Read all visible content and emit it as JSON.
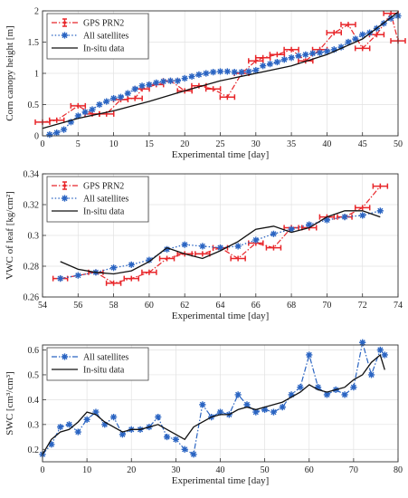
{
  "chart_data": [
    {
      "type": "line",
      "xlabel": "Experimental time [day]",
      "ylabel": "Corn canopy height [m]",
      "xlim": [
        0,
        50
      ],
      "ylim": [
        0,
        2
      ],
      "xticks": [
        0,
        5,
        10,
        15,
        20,
        25,
        30,
        35,
        40,
        45,
        50
      ],
      "yticks": [
        0,
        0.5,
        1,
        1.5,
        2
      ],
      "legend": "top-left",
      "grid": true,
      "series": [
        {
          "name": "GPS PRN2",
          "style": "dash-dot-errorbar",
          "color": "#e8262a",
          "x": [
            0,
            2,
            5,
            7,
            9,
            11,
            13,
            14,
            16,
            18,
            20,
            22,
            24,
            26,
            28,
            30,
            31,
            33,
            35,
            37,
            39,
            41,
            43,
            45,
            47,
            49,
            50
          ],
          "y": [
            0.22,
            0.25,
            0.48,
            0.35,
            0.35,
            0.58,
            0.6,
            0.75,
            0.82,
            0.88,
            0.72,
            0.8,
            0.75,
            0.62,
            1.0,
            1.2,
            1.25,
            1.3,
            1.38,
            1.2,
            1.38,
            1.65,
            1.78,
            1.4,
            1.62,
            1.96,
            1.52
          ]
        },
        {
          "name": "All satellites",
          "style": "dotted-asterisk",
          "color": "#2a64c2",
          "x": [
            1,
            2,
            3,
            4,
            5,
            6,
            7,
            8,
            9,
            10,
            11,
            12,
            13,
            14,
            15,
            16,
            17,
            18,
            19,
            20,
            21,
            22,
            23,
            24,
            25,
            26,
            27,
            28,
            29,
            30,
            31,
            32,
            33,
            34,
            35,
            36,
            37,
            38,
            39,
            40,
            41,
            42,
            43,
            44,
            45,
            46,
            47,
            48,
            49,
            50
          ],
          "y": [
            0.02,
            0.05,
            0.1,
            0.22,
            0.32,
            0.38,
            0.42,
            0.5,
            0.55,
            0.6,
            0.62,
            0.68,
            0.75,
            0.8,
            0.82,
            0.85,
            0.87,
            0.88,
            0.88,
            0.92,
            0.95,
            0.98,
            1.0,
            1.02,
            1.03,
            1.03,
            1.02,
            1.02,
            1.03,
            1.05,
            1.12,
            1.15,
            1.18,
            1.22,
            1.25,
            1.28,
            1.3,
            1.32,
            1.33,
            1.35,
            1.38,
            1.42,
            1.5,
            1.55,
            1.62,
            1.65,
            1.72,
            1.8,
            1.88,
            1.92
          ]
        },
        {
          "name": "In-situ data",
          "style": "solid",
          "color": "#111111",
          "x": [
            0,
            5,
            10,
            15,
            20,
            25,
            30,
            35,
            40,
            45,
            50
          ],
          "y": [
            0.12,
            0.28,
            0.4,
            0.55,
            0.72,
            0.88,
            1.0,
            1.12,
            1.3,
            1.55,
            1.98
          ]
        }
      ]
    },
    {
      "type": "line",
      "xlabel": "Experimental time [day]",
      "ylabel": "VWC of leaf [kg/cm²]",
      "xlim": [
        54,
        74
      ],
      "ylim": [
        0.26,
        0.34
      ],
      "xticks": [
        54,
        56,
        58,
        60,
        62,
        64,
        66,
        68,
        70,
        72,
        74
      ],
      "yticks": [
        0.26,
        0.28,
        0.3,
        0.32,
        0.34
      ],
      "legend": "top-left",
      "grid": true,
      "series": [
        {
          "name": "GPS PRN2",
          "style": "dash-dot-errorbar",
          "color": "#e8262a",
          "x": [
            55,
            57,
            58,
            59,
            60,
            61,
            62,
            63,
            64,
            65,
            66,
            67,
            68,
            69,
            70,
            71,
            72,
            73
          ],
          "y": [
            0.272,
            0.276,
            0.269,
            0.272,
            0.276,
            0.285,
            0.288,
            0.288,
            0.292,
            0.285,
            0.295,
            0.292,
            0.305,
            0.305,
            0.312,
            0.312,
            0.318,
            0.332
          ]
        },
        {
          "name": "All satellites",
          "style": "dotted-asterisk",
          "color": "#2a64c2",
          "x": [
            55,
            56,
            57,
            58,
            59,
            60,
            61,
            62,
            63,
            64,
            65,
            66,
            67,
            68,
            69,
            70,
            71,
            72,
            73
          ],
          "y": [
            0.272,
            0.274,
            0.276,
            0.279,
            0.281,
            0.284,
            0.291,
            0.294,
            0.293,
            0.292,
            0.293,
            0.297,
            0.301,
            0.304,
            0.307,
            0.31,
            0.312,
            0.313,
            0.316
          ]
        },
        {
          "name": "In-situ data",
          "style": "solid",
          "color": "#111111",
          "x": [
            55,
            56,
            57,
            58,
            59,
            60,
            61,
            62,
            63,
            64,
            65,
            66,
            67,
            68,
            69,
            70,
            71,
            72,
            73
          ],
          "y": [
            0.283,
            0.278,
            0.276,
            0.275,
            0.277,
            0.283,
            0.292,
            0.288,
            0.285,
            0.29,
            0.296,
            0.304,
            0.306,
            0.302,
            0.305,
            0.312,
            0.316,
            0.316,
            0.312
          ]
        }
      ]
    },
    {
      "type": "line",
      "xlabel": "Experimental time [day]",
      "ylabel": "SWC [cm³/cm³]",
      "xlim": [
        0,
        80
      ],
      "ylim": [
        0.15,
        0.62
      ],
      "xticks": [
        0,
        10,
        20,
        30,
        40,
        50,
        60,
        70,
        80
      ],
      "yticks": [
        0.2,
        0.3,
        0.4,
        0.5,
        0.6
      ],
      "legend": "top-left",
      "grid": true,
      "series": [
        {
          "name": "All satellites",
          "style": "dash-dot-asterisk",
          "color": "#2a64c2",
          "x": [
            0,
            2,
            4,
            6,
            8,
            10,
            12,
            14,
            16,
            18,
            20,
            22,
            24,
            26,
            28,
            30,
            32,
            34,
            36,
            38,
            40,
            42,
            44,
            46,
            48,
            50,
            52,
            54,
            56,
            58,
            60,
            62,
            64,
            66,
            68,
            70,
            72,
            74,
            76,
            77
          ],
          "y": [
            0.18,
            0.22,
            0.29,
            0.3,
            0.27,
            0.32,
            0.35,
            0.3,
            0.33,
            0.26,
            0.28,
            0.28,
            0.29,
            0.33,
            0.25,
            0.24,
            0.2,
            0.18,
            0.38,
            0.33,
            0.35,
            0.34,
            0.42,
            0.38,
            0.35,
            0.36,
            0.35,
            0.37,
            0.42,
            0.45,
            0.58,
            0.45,
            0.42,
            0.44,
            0.42,
            0.45,
            0.63,
            0.5,
            0.6,
            0.58
          ]
        },
        {
          "name": "In-situ data",
          "style": "solid",
          "color": "#111111",
          "x": [
            0,
            2,
            4,
            6,
            8,
            10,
            12,
            14,
            16,
            18,
            20,
            22,
            24,
            26,
            28,
            30,
            32,
            34,
            36,
            38,
            40,
            42,
            44,
            46,
            48,
            50,
            52,
            54,
            56,
            58,
            60,
            62,
            64,
            66,
            68,
            70,
            72,
            74,
            76,
            77
          ],
          "y": [
            0.18,
            0.24,
            0.27,
            0.28,
            0.31,
            0.35,
            0.34,
            0.31,
            0.29,
            0.27,
            0.28,
            0.28,
            0.29,
            0.3,
            0.28,
            0.26,
            0.24,
            0.29,
            0.31,
            0.33,
            0.34,
            0.34,
            0.36,
            0.37,
            0.36,
            0.37,
            0.38,
            0.39,
            0.41,
            0.43,
            0.46,
            0.44,
            0.43,
            0.44,
            0.45,
            0.48,
            0.5,
            0.55,
            0.58,
            0.52
          ]
        }
      ]
    }
  ]
}
